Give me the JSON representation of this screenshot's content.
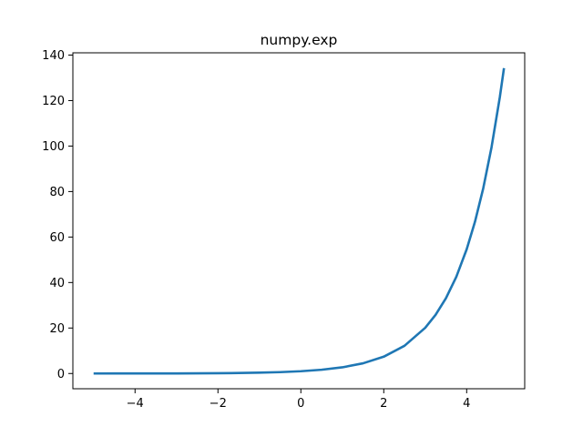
{
  "chart_data": {
    "type": "line",
    "title": "numpy.exp",
    "xlabel": "",
    "ylabel": "",
    "xlim": [
      -5.5,
      5.4
    ],
    "ylim": [
      -6.7,
      141
    ],
    "x_ticks": [
      -4,
      -2,
      0,
      2,
      4
    ],
    "x_tick_labels": [
      "−4",
      "−2",
      "0",
      "2",
      "4"
    ],
    "y_ticks": [
      0,
      20,
      40,
      60,
      80,
      100,
      120,
      140
    ],
    "y_tick_labels": [
      "0",
      "20",
      "40",
      "60",
      "80",
      "100",
      "120",
      "140"
    ],
    "grid": false,
    "series": [
      {
        "color": "#1f77b4",
        "x": [
          -5.0,
          -4.5,
          -4.0,
          -3.5,
          -3.0,
          -2.5,
          -2.0,
          -1.5,
          -1.0,
          -0.5,
          0.0,
          0.5,
          1.0,
          1.5,
          2.0,
          2.5,
          3.0,
          3.25,
          3.5,
          3.75,
          4.0,
          4.2,
          4.4,
          4.6,
          4.8,
          4.9
        ],
        "y": [
          0.0067,
          0.0111,
          0.0183,
          0.0302,
          0.0498,
          0.0821,
          0.1353,
          0.2231,
          0.3679,
          0.6065,
          1.0,
          1.6487,
          2.7183,
          4.4817,
          7.3891,
          12.1825,
          20.0855,
          25.7903,
          33.1155,
          42.5211,
          54.5982,
          66.6863,
          81.4509,
          99.4843,
          121.5104,
          134.2898
        ]
      }
    ]
  }
}
